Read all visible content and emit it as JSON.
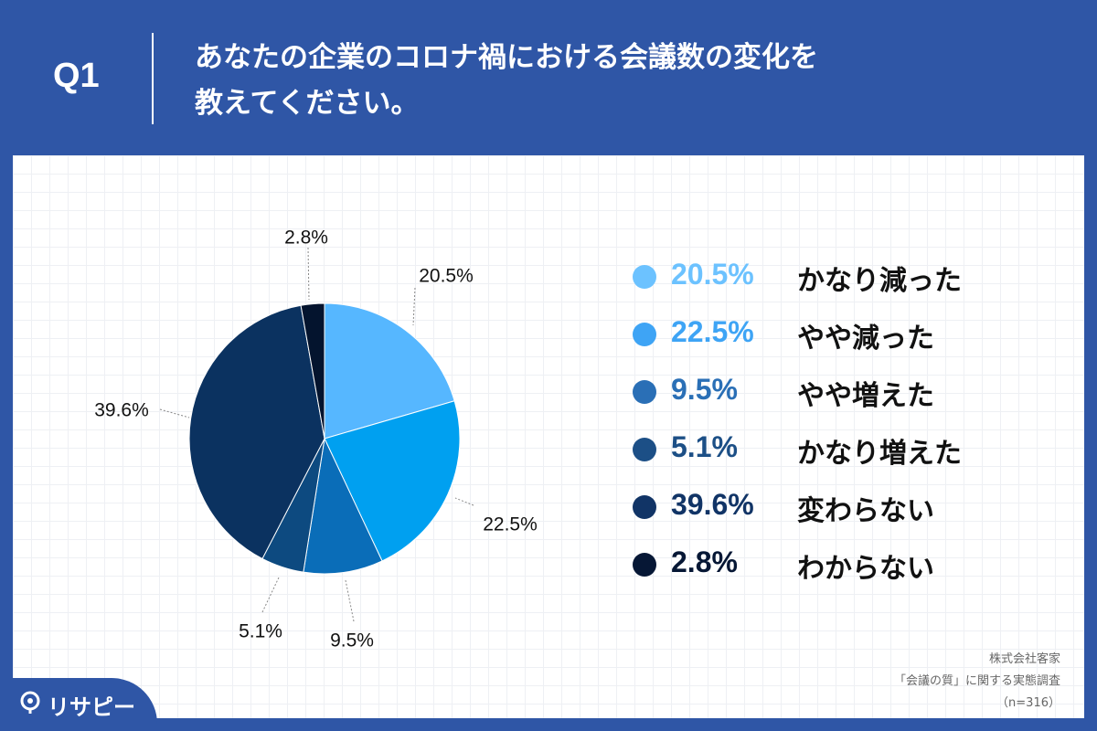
{
  "question": {
    "label": "Q1",
    "title_line1": "あなたの企業のコロナ禍における会議数の変化を",
    "title_line2": "教えてください。"
  },
  "chart_data": {
    "type": "pie",
    "start_angle_deg": 0,
    "direction": "clockwise",
    "slices": [
      {
        "label": "かなり減った",
        "value": 20.5,
        "display": "20.5%",
        "color": "#56b7ff"
      },
      {
        "label": "やや減った",
        "value": 22.5,
        "display": "22.5%",
        "color": "#00a0f0"
      },
      {
        "label": "やや増えた",
        "value": 9.5,
        "display": "9.5%",
        "color": "#0a6db8"
      },
      {
        "label": "かなり増えた",
        "value": 5.1,
        "display": "5.1%",
        "color": "#0d4a80"
      },
      {
        "label": "変わらない",
        "value": 39.6,
        "display": "39.6%",
        "color": "#0b3260"
      },
      {
        "label": "わからない",
        "value": 2.8,
        "display": "2.8%",
        "color": "#04142e"
      }
    ],
    "legend_placement": "right"
  },
  "legend_colors": [
    "#6cc2ff",
    "#3ea4f5",
    "#2a6fb6",
    "#1c4f86",
    "#113466",
    "#061735"
  ],
  "source": {
    "company": "株式会社客家",
    "survey": "「会議の質」に関する実態調査",
    "sample": "（n=316）"
  },
  "brand": {
    "name": "リサピー",
    "icon": "pin-icon"
  }
}
